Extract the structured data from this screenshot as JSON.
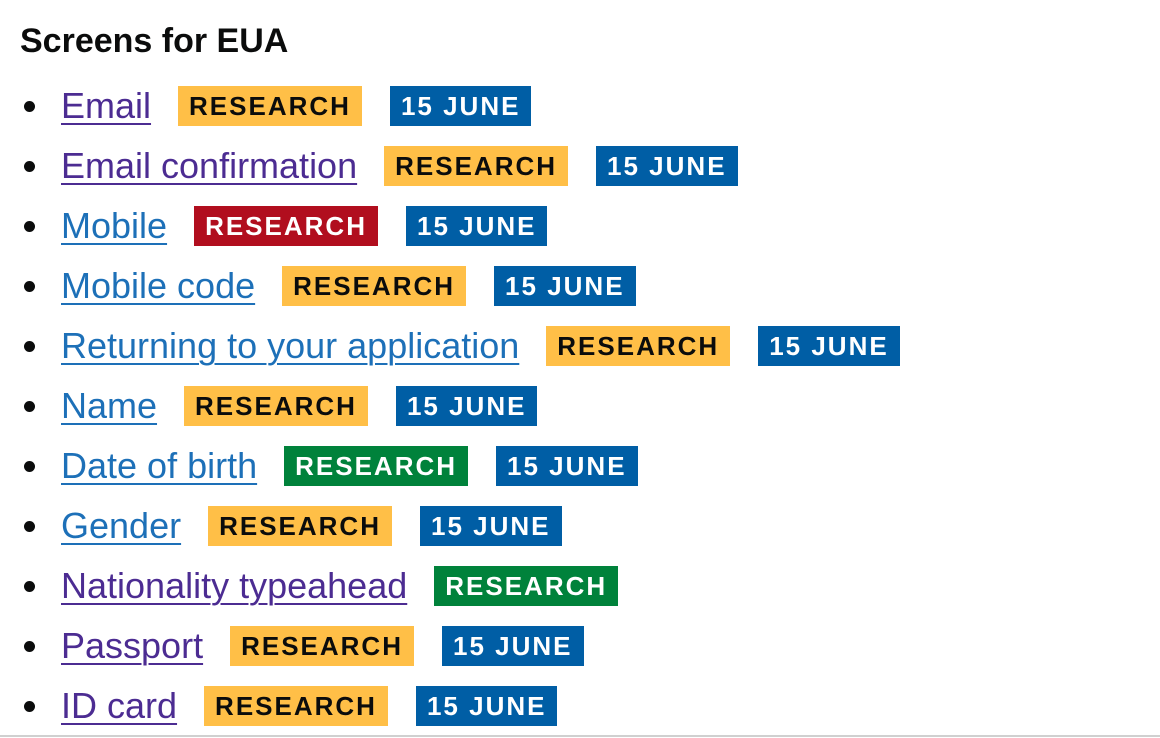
{
  "heading": "Screens for EUA",
  "colors": {
    "link_visited": "#4c2c92",
    "link_unvisited": "#1d70b8",
    "tag_yellow": "#ffbf47",
    "tag_red": "#b10e1e",
    "tag_green": "#00823b",
    "tag_blue": "#005ea5"
  },
  "items": [
    {
      "label": "Email",
      "link_state": "visited",
      "status": "RESEARCH",
      "status_color": "yellow",
      "date": "15 JUNE"
    },
    {
      "label": "Email confirmation",
      "link_state": "visited",
      "status": "RESEARCH",
      "status_color": "yellow",
      "date": "15 JUNE"
    },
    {
      "label": "Mobile",
      "link_state": "unvisited",
      "status": "RESEARCH",
      "status_color": "red",
      "date": "15 JUNE"
    },
    {
      "label": "Mobile code",
      "link_state": "unvisited",
      "status": "RESEARCH",
      "status_color": "yellow",
      "date": "15 JUNE"
    },
    {
      "label": "Returning to your application",
      "link_state": "unvisited",
      "status": "RESEARCH",
      "status_color": "yellow",
      "date": "15 JUNE"
    },
    {
      "label": "Name",
      "link_state": "unvisited",
      "status": "RESEARCH",
      "status_color": "yellow",
      "date": "15 JUNE"
    },
    {
      "label": "Date of birth",
      "link_state": "unvisited",
      "status": "RESEARCH",
      "status_color": "green",
      "date": "15 JUNE"
    },
    {
      "label": "Gender",
      "link_state": "unvisited",
      "status": "RESEARCH",
      "status_color": "yellow",
      "date": "15 JUNE"
    },
    {
      "label": "Nationality typeahead",
      "link_state": "visited",
      "status": "RESEARCH",
      "status_color": "green",
      "date": ""
    },
    {
      "label": "Passport",
      "link_state": "visited",
      "status": "RESEARCH",
      "status_color": "yellow",
      "date": "15 JUNE"
    },
    {
      "label": "ID card",
      "link_state": "visited",
      "status": "RESEARCH",
      "status_color": "yellow",
      "date": "15 JUNE"
    }
  ]
}
